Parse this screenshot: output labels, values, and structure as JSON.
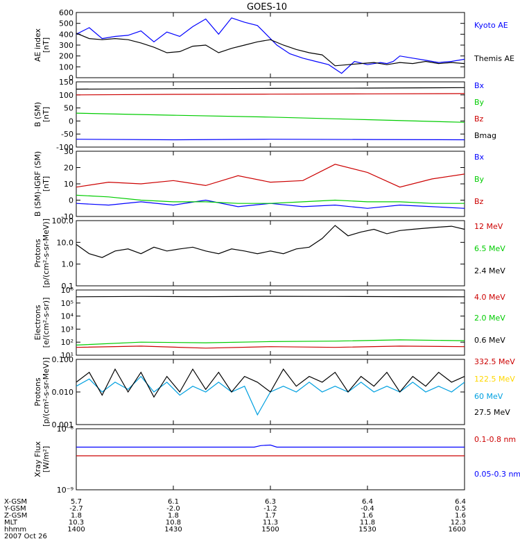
{
  "title": "GOES-10",
  "colors": {
    "black": "#000000",
    "blue": "#0000ff",
    "red": "#cc0000",
    "green": "#00cc00",
    "yellow": "#ffd700",
    "cyan": "#00a0e0"
  },
  "bottom_axis": {
    "row_labels": [
      "X-GSM",
      "Y-GSM",
      "Z-GSM",
      "MLT",
      "hhmm",
      "2007 Oct 26"
    ],
    "columns": [
      {
        "x_gsm": "5.7",
        "y_gsm": "-2.7",
        "z_gsm": "1.8",
        "mlt": "10.3",
        "hhmm": "1400"
      },
      {
        "x_gsm": "6.1",
        "y_gsm": "-2.0",
        "z_gsm": "1.8",
        "mlt": "10.8",
        "hhmm": "1430"
      },
      {
        "x_gsm": "6.3",
        "y_gsm": "-1.2",
        "z_gsm": "1.7",
        "mlt": "11.3",
        "hhmm": "1500"
      },
      {
        "x_gsm": "6.4",
        "y_gsm": "-0.4",
        "z_gsm": "1.6",
        "mlt": "11.8",
        "hhmm": "1530"
      },
      {
        "x_gsm": "6.4",
        "y_gsm": "0.5",
        "z_gsm": "1.6",
        "mlt": "12.3",
        "hhmm": "1600"
      }
    ]
  },
  "chart_data": [
    {
      "type": "line",
      "ylabel": [
        "AE index",
        "[nT]"
      ],
      "ylim": [
        0,
        600
      ],
      "scale": "linear",
      "yticks": [
        0,
        100,
        200,
        300,
        400,
        500,
        600
      ],
      "ytick_labels": [
        "0",
        "100",
        "200",
        "300",
        "400",
        "500",
        "600"
      ],
      "xlim": [
        0,
        120
      ],
      "series": [
        {
          "name": "Kyoto AE",
          "color": "#0000ff",
          "x": [
            0,
            4,
            8,
            12,
            16,
            20,
            24,
            28,
            32,
            36,
            40,
            44,
            48,
            52,
            56,
            58,
            62,
            66,
            70,
            74,
            78,
            82,
            86,
            90,
            94,
            96,
            98,
            100,
            104,
            108,
            112,
            116,
            120
          ],
          "y": [
            400,
            460,
            360,
            380,
            390,
            430,
            330,
            420,
            380,
            470,
            540,
            400,
            550,
            510,
            480,
            420,
            300,
            220,
            180,
            150,
            120,
            40,
            150,
            120,
            140,
            130,
            150,
            200,
            180,
            160,
            140,
            150,
            170
          ]
        },
        {
          "name": "Themis AE",
          "color": "#000000",
          "x": [
            0,
            4,
            8,
            12,
            16,
            20,
            24,
            28,
            32,
            36,
            40,
            44,
            48,
            52,
            56,
            60,
            64,
            68,
            72,
            76,
            80,
            84,
            88,
            92,
            96,
            100,
            104,
            108,
            112,
            116,
            120
          ],
          "y": [
            410,
            360,
            350,
            360,
            350,
            320,
            280,
            230,
            240,
            290,
            300,
            230,
            270,
            300,
            330,
            350,
            300,
            260,
            230,
            210,
            110,
            120,
            130,
            140,
            120,
            140,
            130,
            150,
            130,
            140,
            130
          ]
        }
      ]
    },
    {
      "type": "line",
      "ylabel": [
        "B (SM)",
        "[nT]"
      ],
      "ylim": [
        -100,
        150
      ],
      "scale": "linear",
      "yticks": [
        -100,
        -50,
        0,
        50,
        100,
        150
      ],
      "ytick_labels": [
        "-100",
        "-50",
        "0",
        "50",
        "100",
        "150"
      ],
      "xlim": [
        0,
        120
      ],
      "series": [
        {
          "name": "Bx",
          "color": "#0000ff",
          "x": [
            0,
            30,
            60,
            90,
            120
          ],
          "y": [
            -70,
            -72,
            -70,
            -71,
            -72
          ]
        },
        {
          "name": "By",
          "color": "#00cc00",
          "x": [
            0,
            30,
            60,
            90,
            120
          ],
          "y": [
            30,
            22,
            15,
            5,
            -5
          ]
        },
        {
          "name": "Bz",
          "color": "#cc0000",
          "x": [
            0,
            30,
            60,
            90,
            120
          ],
          "y": [
            100,
            102,
            103,
            104,
            105
          ]
        },
        {
          "name": "Bmag",
          "color": "#000000",
          "x": [
            0,
            30,
            60,
            90,
            120
          ],
          "y": [
            122,
            124,
            125,
            126,
            128
          ]
        }
      ]
    },
    {
      "type": "line",
      "ylabel": [
        "B (SM)-IGRF (SM)",
        "[nT]"
      ],
      "ylim": [
        -10,
        30
      ],
      "scale": "linear",
      "yticks": [
        -10,
        0,
        10,
        20,
        30
      ],
      "ytick_labels": [
        "-10",
        "0",
        "10",
        "20",
        "30"
      ],
      "xlim": [
        0,
        120
      ],
      "series": [
        {
          "name": "Bx",
          "color": "#0000ff",
          "x": [
            0,
            10,
            20,
            30,
            40,
            50,
            60,
            70,
            80,
            90,
            100,
            110,
            120
          ],
          "y": [
            -2,
            -3,
            -1,
            -3,
            0,
            -4,
            -2,
            -4,
            -3,
            -5,
            -3,
            -4,
            -5
          ]
        },
        {
          "name": "By",
          "color": "#00cc00",
          "x": [
            0,
            10,
            20,
            30,
            40,
            50,
            60,
            70,
            80,
            90,
            100,
            110,
            120
          ],
          "y": [
            3,
            2,
            0,
            -1,
            -1,
            -2,
            -2,
            -1,
            0,
            -1,
            -1,
            -2,
            -2
          ]
        },
        {
          "name": "Bz",
          "color": "#cc0000",
          "x": [
            0,
            10,
            20,
            30,
            40,
            50,
            60,
            70,
            80,
            90,
            100,
            110,
            120
          ],
          "y": [
            8,
            11,
            10,
            12,
            9,
            15,
            11,
            12,
            22,
            17,
            8,
            13,
            16
          ]
        }
      ]
    },
    {
      "type": "line",
      "ylabel": [
        "Protons",
        "[p/(cm²-s-sr-MeV)]"
      ],
      "ylim": [
        0.1,
        100
      ],
      "scale": "log",
      "yticks": [
        0.1,
        1,
        10,
        100
      ],
      "ytick_labels": [
        "0.1",
        "1.0",
        "10.0",
        "100.0"
      ],
      "xlim": [
        0,
        120
      ],
      "series": [
        {
          "name": "12 MeV",
          "color": "#cc0000",
          "x": [],
          "y": []
        },
        {
          "name": "6.5 MeV",
          "color": "#00cc00",
          "x": [],
          "y": []
        },
        {
          "name": "2.4 MeV",
          "color": "#000000",
          "x": [
            0,
            4,
            8,
            12,
            16,
            20,
            24,
            28,
            32,
            36,
            40,
            44,
            48,
            52,
            56,
            60,
            64,
            68,
            72,
            76,
            80,
            84,
            88,
            92,
            96,
            100,
            104,
            108,
            112,
            116,
            120
          ],
          "y": [
            8,
            3,
            2,
            4,
            5,
            3,
            6,
            4,
            5,
            6,
            4,
            3,
            5,
            4,
            3,
            4,
            3,
            5,
            6,
            15,
            60,
            20,
            30,
            40,
            25,
            35,
            40,
            45,
            50,
            55,
            40
          ]
        }
      ]
    },
    {
      "type": "line",
      "ylabel": [
        "Electrons",
        "[e/(cm²-s-sr)]"
      ],
      "ylim": [
        10,
        1000000
      ],
      "scale": "log",
      "yticks": [
        10,
        100,
        1000,
        10000,
        100000,
        1000000
      ],
      "ytick_labels": [
        "10¹",
        "10²",
        "10³",
        "10⁴",
        "10⁵",
        "10⁶"
      ],
      "xlim": [
        0,
        120
      ],
      "series": [
        {
          "name": "4.0 MeV",
          "color": "#cc0000",
          "x": [
            0,
            20,
            40,
            60,
            80,
            100,
            120
          ],
          "y": [
            40,
            50,
            35,
            45,
            40,
            50,
            45
          ]
        },
        {
          "name": "2.0 MeV",
          "color": "#00cc00",
          "x": [
            0,
            20,
            40,
            60,
            80,
            100,
            120
          ],
          "y": [
            60,
            100,
            90,
            110,
            120,
            150,
            130
          ]
        },
        {
          "name": "0.6 MeV",
          "color": "#000000",
          "x": [
            0,
            20,
            40,
            60,
            80,
            100,
            120
          ],
          "y": [
            300000,
            320000,
            310000,
            330000,
            320000,
            310000,
            300000
          ]
        }
      ]
    },
    {
      "type": "line",
      "ylabel": [
        "Protons",
        "[p/(cm²-s-sr-MeV)]"
      ],
      "ylim": [
        0.001,
        0.1
      ],
      "scale": "log",
      "yticks": [
        0.001,
        0.01,
        0.1
      ],
      "ytick_labels": [
        "0.001",
        "0.010",
        "0.100"
      ],
      "xlim": [
        0,
        120
      ],
      "series": [
        {
          "name": "332.5 MeV",
          "color": "#cc0000",
          "x": [],
          "y": []
        },
        {
          "name": "122.5 MeV",
          "color": "#ffd700",
          "x": [],
          "y": []
        },
        {
          "name": "60 MeV",
          "color": "#00a0e0",
          "x": [
            0,
            4,
            8,
            12,
            16,
            20,
            24,
            28,
            32,
            36,
            40,
            44,
            48,
            52,
            56,
            60,
            64,
            68,
            72,
            76,
            80,
            84,
            88,
            92,
            96,
            100,
            104,
            108,
            112,
            116,
            120
          ],
          "y": [
            0.015,
            0.025,
            0.01,
            0.02,
            0.012,
            0.03,
            0.01,
            0.02,
            0.008,
            0.015,
            0.01,
            0.02,
            0.01,
            0.015,
            0.002,
            0.01,
            0.015,
            0.01,
            0.02,
            0.01,
            0.015,
            0.01,
            0.02,
            0.01,
            0.015,
            0.01,
            0.02,
            0.01,
            0.015,
            0.01,
            0.02
          ]
        },
        {
          "name": "27.5 MeV",
          "color": "#000000",
          "x": [
            0,
            4,
            8,
            12,
            16,
            20,
            24,
            28,
            32,
            36,
            40,
            44,
            48,
            52,
            56,
            60,
            64,
            68,
            72,
            76,
            80,
            84,
            88,
            92,
            96,
            100,
            104,
            108,
            112,
            116,
            120
          ],
          "y": [
            0.02,
            0.04,
            0.008,
            0.05,
            0.01,
            0.04,
            0.007,
            0.03,
            0.01,
            0.05,
            0.012,
            0.04,
            0.01,
            0.03,
            0.02,
            0.01,
            0.05,
            0.015,
            0.03,
            0.02,
            0.04,
            0.01,
            0.03,
            0.015,
            0.04,
            0.01,
            0.03,
            0.015,
            0.04,
            0.02,
            0.03
          ]
        }
      ]
    },
    {
      "type": "line",
      "ylabel": [
        "Xray Flux",
        "[W/m²]"
      ],
      "ylim": [
        1e-09,
        1e-08
      ],
      "scale": "log",
      "yticks": [
        1e-09,
        1e-08
      ],
      "ytick_labels": [
        "10⁻⁹",
        "10⁻⁸"
      ],
      "xlim": [
        0,
        120
      ],
      "series": [
        {
          "name": "0.1-0.8 nm",
          "color": "#cc0000",
          "x": [
            0,
            120
          ],
          "y": [
            3.6e-09,
            3.6e-09
          ]
        },
        {
          "name": "0.05-0.3 nm",
          "color": "#0000ff",
          "x": [
            0,
            55,
            57,
            60,
            62,
            120
          ],
          "y": [
            5e-09,
            5e-09,
            5.3e-09,
            5.4e-09,
            5e-09,
            5e-09
          ]
        }
      ]
    }
  ]
}
